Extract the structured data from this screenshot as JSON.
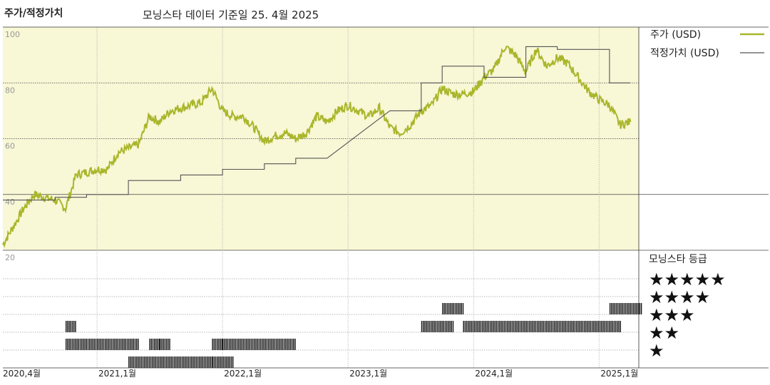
{
  "header": {
    "title": "주가/적정가치",
    "subtitle": "모닝스타 데이터 기준일 25. 4월 2025"
  },
  "colors": {
    "price": "#a9b62b",
    "fair": "#555555",
    "panel_bg": "#f8f7d6"
  },
  "chart_data": [
    {
      "type": "line",
      "title": "주가/적정가치",
      "ylim": [
        20,
        100
      ],
      "y_ticks": [
        "100",
        "80",
        "60",
        "40",
        "20"
      ],
      "x_ticks": [
        "2020,4월",
        "2021,1월",
        "2022,1월",
        "2023,1월",
        "2024,1월",
        "2025,1월"
      ],
      "x_range": [
        "2020-04",
        "2025-04"
      ],
      "legend": {
        "placement": "right"
      },
      "series": [
        {
          "name": "주가 (USD)",
          "x": [
            "2020-04",
            "2020-06",
            "2020-07",
            "2020-09",
            "2020-10",
            "2020-11",
            "2020-12",
            "2021-01",
            "2021-02",
            "2021-03",
            "2021-05",
            "2021-06",
            "2021-07",
            "2021-08",
            "2021-10",
            "2021-11",
            "2021-12",
            "2022-01",
            "2022-02",
            "2022-03",
            "2022-04",
            "2022-05",
            "2022-06",
            "2022-07",
            "2022-08",
            "2022-09",
            "2022-10",
            "2022-11",
            "2022-12",
            "2023-01",
            "2023-02",
            "2023-03",
            "2023-04",
            "2023-05",
            "2023-06",
            "2023-07",
            "2023-08",
            "2023-09",
            "2023-10",
            "2023-11",
            "2023-12",
            "2024-01",
            "2024-02",
            "2024-03",
            "2024-04",
            "2024-05",
            "2024-06",
            "2024-07",
            "2024-08",
            "2024-09",
            "2024-10",
            "2024-11",
            "2024-12",
            "2025-01",
            "2025-02",
            "2025-03",
            "2025-04"
          ],
          "values": [
            22,
            35,
            40,
            38,
            35,
            47,
            48,
            49,
            49,
            55,
            58,
            68,
            66,
            70,
            72,
            73,
            78,
            70,
            68,
            68,
            64,
            59,
            61,
            62,
            60,
            62,
            68,
            66,
            70,
            72,
            70,
            68,
            71,
            64,
            62,
            65,
            70,
            72,
            78,
            76,
            76,
            77,
            82,
            85,
            93,
            90,
            84,
            92,
            86,
            89,
            87,
            82,
            77,
            74,
            72,
            65,
            66
          ],
          "color": "#a9b62b"
        },
        {
          "name": "적정가치 (USD)",
          "x": [
            "2020-04",
            "2020-09",
            "2020-09",
            "2020-12",
            "2020-12",
            "2021-04",
            "2021-04",
            "2021-09",
            "2021-09",
            "2022-01",
            "2022-01",
            "2022-05",
            "2022-05",
            "2022-08",
            "2022-08",
            "2022-11",
            "2023-05",
            "2023-08",
            "2023-08",
            "2023-10",
            "2023-10",
            "2024-02",
            "2024-02",
            "2024-06",
            "2024-06",
            "2024-09",
            "2024-09",
            "2025-02",
            "2025-02",
            "2025-04"
          ],
          "values": [
            38,
            38,
            39,
            39,
            40,
            40,
            45,
            45,
            47,
            47,
            49,
            49,
            51,
            51,
            53,
            53,
            70,
            70,
            80,
            80,
            86,
            86,
            82,
            82,
            93,
            93,
            92,
            92,
            80,
            80
          ],
          "color": "#555555"
        }
      ]
    },
    {
      "type": "heatmap",
      "title": "모닝스타 등급",
      "levels": [
        {
          "label": "★★★★★",
          "stars": 5,
          "periods": []
        },
        {
          "label": "★★★★",
          "stars": 4,
          "periods": [
            [
              "2023-10",
              "2023-11"
            ],
            [
              "2025-02",
              "2025-04"
            ]
          ]
        },
        {
          "label": "★★★",
          "stars": 3,
          "periods": [
            [
              "2020-10",
              "2020-10"
            ],
            [
              "2023-08",
              "2023-10"
            ],
            [
              "2023-12",
              "2025-02"
            ]
          ]
        },
        {
          "label": "★★",
          "stars": 2,
          "periods": [
            [
              "2020-10",
              "2021-04"
            ],
            [
              "2021-06",
              "2021-06"
            ],
            [
              "2021-07",
              "2021-07"
            ],
            [
              "2021-12",
              "2021-12"
            ],
            [
              "2022-01",
              "2022-07"
            ]
          ]
        },
        {
          "label": "★",
          "stars": 1,
          "periods": [
            [
              "2021-04",
              "2021-11"
            ],
            [
              "2021-12",
              "2022-01"
            ]
          ]
        }
      ]
    }
  ]
}
